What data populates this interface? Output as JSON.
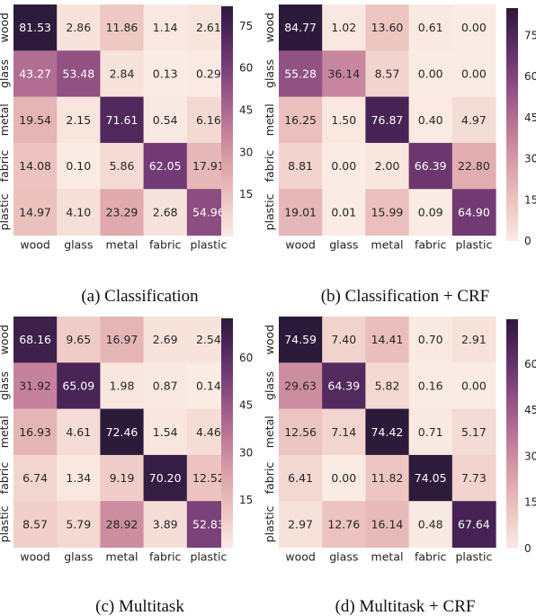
{
  "chart_data": [
    {
      "type": "heatmap",
      "caption": "(a) Classification",
      "rows": [
        "wood",
        "glass",
        "metal",
        "fabric",
        "plastic"
      ],
      "cols": [
        "wood",
        "glass",
        "metal",
        "fabric",
        "plastic"
      ],
      "values": [
        [
          81.53,
          2.86,
          11.86,
          1.14,
          2.61
        ],
        [
          43.27,
          53.48,
          2.84,
          0.13,
          0.29
        ],
        [
          19.54,
          2.15,
          71.61,
          0.54,
          6.16
        ],
        [
          14.08,
          0.1,
          5.86,
          62.05,
          17.91
        ],
        [
          14.97,
          4.1,
          23.29,
          2.68,
          54.96
        ]
      ],
      "labels": [
        [
          "81.53",
          "2.86",
          "11.86",
          "1.14",
          "2.61"
        ],
        [
          "43.27",
          "53.48",
          "2.84",
          "0.13",
          "0.29"
        ],
        [
          "19.54",
          "2.15",
          "71.61",
          "0.54",
          "6.16"
        ],
        [
          "14.08",
          "0.10",
          "5.86",
          "62.05",
          "17.91"
        ],
        [
          "14.97",
          "4.10",
          "23.29",
          "2.68",
          "54.96"
        ]
      ],
      "vmin": 0,
      "vmax": 82,
      "colorbar_ticks": [
        "15",
        "30",
        "45",
        "60",
        "75"
      ]
    },
    {
      "type": "heatmap",
      "caption": "(b) Classification + CRF",
      "rows": [
        "wood",
        "glass",
        "metal",
        "fabric",
        "plastic"
      ],
      "cols": [
        "wood",
        "glass",
        "metal",
        "fabric",
        "plastic"
      ],
      "values": [
        [
          84.77,
          1.02,
          13.6,
          0.61,
          0.0
        ],
        [
          55.28,
          36.14,
          8.57,
          0.0,
          0.0
        ],
        [
          16.25,
          1.5,
          76.87,
          0.4,
          4.97
        ],
        [
          8.81,
          0.0,
          2.0,
          66.39,
          22.8
        ],
        [
          19.01,
          0.01,
          15.99,
          0.09,
          64.9
        ]
      ],
      "labels": [
        [
          "84.77",
          "1.02",
          "13.60",
          "0.61",
          "0.00"
        ],
        [
          "55.28",
          "36.14",
          "8.57",
          "0.00",
          "0.00"
        ],
        [
          "16.25",
          "1.50",
          "76.87",
          "0.40",
          "4.97"
        ],
        [
          "8.81",
          "0.00",
          "2.00",
          "66.39",
          "22.80"
        ],
        [
          "19.01",
          "0.01",
          "15.99",
          "0.09",
          "64.90"
        ]
      ],
      "vmin": 0,
      "vmax": 85,
      "colorbar_ticks": [
        "0",
        "15",
        "30",
        "45",
        "60",
        "75"
      ]
    },
    {
      "type": "heatmap",
      "caption": "(c) Multitask",
      "rows": [
        "wood",
        "glass",
        "metal",
        "fabric",
        "plastic"
      ],
      "cols": [
        "wood",
        "glass",
        "metal",
        "fabric",
        "plastic"
      ],
      "values": [
        [
          68.16,
          9.65,
          16.97,
          2.69,
          2.54
        ],
        [
          31.92,
          65.09,
          1.98,
          0.87,
          0.14
        ],
        [
          16.93,
          4.61,
          72.46,
          1.54,
          4.46
        ],
        [
          6.74,
          1.34,
          9.19,
          70.2,
          12.52
        ],
        [
          8.57,
          5.79,
          28.92,
          3.89,
          52.83
        ]
      ],
      "labels": [
        [
          "68.16",
          "9.65",
          "16.97",
          "2.69",
          "2.54"
        ],
        [
          "31.92",
          "65.09",
          "1.98",
          "0.87",
          "0.14"
        ],
        [
          "16.93",
          "4.61",
          "72.46",
          "1.54",
          "4.46"
        ],
        [
          "6.74",
          "1.34",
          "9.19",
          "70.20",
          "12.52"
        ],
        [
          "8.57",
          "5.79",
          "28.92",
          "3.89",
          "52.83"
        ]
      ],
      "vmin": 0,
      "vmax": 72.5,
      "colorbar_ticks": [
        "15",
        "30",
        "45",
        "60"
      ]
    },
    {
      "type": "heatmap",
      "caption": "(d) Multitask + CRF",
      "rows": [
        "wood",
        "glass",
        "metal",
        "fabric",
        "plastic"
      ],
      "cols": [
        "wood",
        "glass",
        "metal",
        "fabric",
        "plastic"
      ],
      "values": [
        [
          74.59,
          7.4,
          14.41,
          0.7,
          2.91
        ],
        [
          29.63,
          64.39,
          5.82,
          0.16,
          0.0
        ],
        [
          12.56,
          7.14,
          74.42,
          0.71,
          5.17
        ],
        [
          6.41,
          0.0,
          11.82,
          74.05,
          7.73
        ],
        [
          2.97,
          12.76,
          16.14,
          0.48,
          67.64
        ]
      ],
      "labels": [
        [
          "74.59",
          "7.40",
          "14.41",
          "0.70",
          "2.91"
        ],
        [
          "29.63",
          "64.39",
          "5.82",
          "0.16",
          "0.00"
        ],
        [
          "12.56",
          "7.14",
          "74.42",
          "0.71",
          "5.17"
        ],
        [
          "6.41",
          "0.00",
          "11.82",
          "74.05",
          "7.73"
        ],
        [
          "2.97",
          "12.76",
          "16.14",
          "0.48",
          "67.64"
        ]
      ],
      "vmin": 0,
      "vmax": 74.6,
      "colorbar_ticks": [
        "0",
        "15",
        "30",
        "45",
        "60"
      ]
    }
  ]
}
